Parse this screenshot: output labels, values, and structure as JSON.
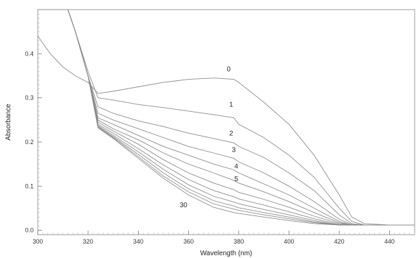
{
  "chart_data": {
    "type": "line",
    "title": "",
    "xlabel": "Wavelength (nm)",
    "ylabel": "Absorbance",
    "xlim": [
      300,
      450
    ],
    "ylim": [
      -0.01,
      0.5
    ],
    "x_ticks": [
      300,
      320,
      340,
      360,
      380,
      400,
      420,
      440
    ],
    "y_ticks": [
      0.0,
      0.1,
      0.2,
      0.3,
      0.4
    ],
    "y_tick_labels": [
      "0.0",
      "0.1",
      "0.2",
      "0.3",
      "0.4"
    ],
    "grid": false,
    "line_color": "#8a8a8a",
    "series": [
      {
        "name": "0",
        "label_at": [
          376,
          0.36
        ],
        "points": [
          [
            300,
            0.44
          ],
          [
            305,
            0.4
          ],
          [
            310,
            0.37
          ],
          [
            315,
            0.35
          ],
          [
            320,
            0.335
          ],
          [
            324,
            0.31
          ],
          [
            330,
            0.315
          ],
          [
            340,
            0.325
          ],
          [
            350,
            0.335
          ],
          [
            360,
            0.342
          ],
          [
            370,
            0.345
          ],
          [
            378,
            0.342
          ],
          [
            380,
            0.335
          ],
          [
            390,
            0.29
          ],
          [
            400,
            0.24
          ],
          [
            410,
            0.17
          ],
          [
            420,
            0.08
          ],
          [
            425,
            0.03
          ],
          [
            430,
            0.015
          ],
          [
            440,
            0.012
          ],
          [
            450,
            0.012
          ]
        ]
      },
      {
        "name": "1",
        "label_at": [
          377,
          0.28
        ],
        "points": [
          [
            300,
            0.5
          ],
          [
            312,
            0.5
          ],
          [
            315,
            0.45
          ],
          [
            320,
            0.36
          ],
          [
            324,
            0.3
          ],
          [
            330,
            0.295
          ],
          [
            340,
            0.285
          ],
          [
            350,
            0.278
          ],
          [
            360,
            0.27
          ],
          [
            370,
            0.262
          ],
          [
            378,
            0.255
          ],
          [
            380,
            0.24
          ],
          [
            390,
            0.21
          ],
          [
            400,
            0.17
          ],
          [
            410,
            0.12
          ],
          [
            420,
            0.05
          ],
          [
            425,
            0.02
          ],
          [
            430,
            0.012
          ],
          [
            440,
            0.012
          ],
          [
            450,
            0.012
          ]
        ]
      },
      {
        "name": "2",
        "label_at": [
          377,
          0.215
        ],
        "points": [
          [
            300,
            0.5
          ],
          [
            312,
            0.5
          ],
          [
            315,
            0.45
          ],
          [
            320,
            0.35
          ],
          [
            324,
            0.28
          ],
          [
            330,
            0.265
          ],
          [
            340,
            0.248
          ],
          [
            350,
            0.235
          ],
          [
            360,
            0.22
          ],
          [
            370,
            0.208
          ],
          [
            378,
            0.198
          ],
          [
            380,
            0.19
          ],
          [
            390,
            0.165
          ],
          [
            400,
            0.13
          ],
          [
            410,
            0.09
          ],
          [
            420,
            0.035
          ],
          [
            425,
            0.015
          ],
          [
            430,
            0.012
          ],
          [
            440,
            0.012
          ],
          [
            450,
            0.012
          ]
        ]
      },
      {
        "name": "3",
        "label_at": [
          378,
          0.177
        ],
        "points": [
          [
            300,
            0.5
          ],
          [
            312,
            0.5
          ],
          [
            315,
            0.45
          ],
          [
            320,
            0.35
          ],
          [
            324,
            0.265
          ],
          [
            330,
            0.25
          ],
          [
            340,
            0.23
          ],
          [
            350,
            0.21
          ],
          [
            360,
            0.19
          ],
          [
            370,
            0.175
          ],
          [
            378,
            0.163
          ],
          [
            380,
            0.155
          ],
          [
            390,
            0.13
          ],
          [
            400,
            0.1
          ],
          [
            410,
            0.065
          ],
          [
            420,
            0.025
          ],
          [
            425,
            0.013
          ],
          [
            430,
            0.012
          ],
          [
            440,
            0.012
          ],
          [
            450,
            0.012
          ]
        ]
      },
      {
        "name": "4",
        "label_at": [
          379,
          0.14
        ],
        "points": [
          [
            300,
            0.5
          ],
          [
            312,
            0.5
          ],
          [
            315,
            0.45
          ],
          [
            320,
            0.35
          ],
          [
            324,
            0.255
          ],
          [
            330,
            0.24
          ],
          [
            340,
            0.215
          ],
          [
            350,
            0.19
          ],
          [
            360,
            0.17
          ],
          [
            370,
            0.15
          ],
          [
            378,
            0.137
          ],
          [
            380,
            0.13
          ],
          [
            390,
            0.105
          ],
          [
            400,
            0.08
          ],
          [
            410,
            0.05
          ],
          [
            420,
            0.02
          ],
          [
            425,
            0.012
          ],
          [
            430,
            0.012
          ],
          [
            440,
            0.012
          ],
          [
            450,
            0.012
          ]
        ]
      },
      {
        "name": "5",
        "label_at": [
          379,
          0.111
        ],
        "points": [
          [
            300,
            0.5
          ],
          [
            312,
            0.5
          ],
          [
            315,
            0.45
          ],
          [
            320,
            0.35
          ],
          [
            324,
            0.25
          ],
          [
            330,
            0.23
          ],
          [
            340,
            0.205
          ],
          [
            350,
            0.175
          ],
          [
            360,
            0.15
          ],
          [
            370,
            0.13
          ],
          [
            378,
            0.113
          ],
          [
            380,
            0.107
          ],
          [
            390,
            0.087
          ],
          [
            400,
            0.065
          ],
          [
            410,
            0.04
          ],
          [
            420,
            0.017
          ],
          [
            425,
            0.012
          ],
          [
            430,
            0.012
          ],
          [
            440,
            0.012
          ],
          [
            450,
            0.012
          ]
        ]
      },
      {
        "name": "",
        "points": [
          [
            300,
            0.5
          ],
          [
            312,
            0.5
          ],
          [
            315,
            0.45
          ],
          [
            320,
            0.35
          ],
          [
            324,
            0.245
          ],
          [
            330,
            0.225
          ],
          [
            340,
            0.195
          ],
          [
            350,
            0.16
          ],
          [
            360,
            0.13
          ],
          [
            370,
            0.107
          ],
          [
            378,
            0.092
          ],
          [
            380,
            0.086
          ],
          [
            390,
            0.07
          ],
          [
            400,
            0.052
          ],
          [
            410,
            0.032
          ],
          [
            420,
            0.015
          ],
          [
            425,
            0.012
          ],
          [
            430,
            0.012
          ],
          [
            440,
            0.012
          ],
          [
            450,
            0.012
          ]
        ]
      },
      {
        "name": "",
        "points": [
          [
            300,
            0.5
          ],
          [
            312,
            0.5
          ],
          [
            315,
            0.45
          ],
          [
            320,
            0.35
          ],
          [
            324,
            0.24
          ],
          [
            330,
            0.22
          ],
          [
            340,
            0.185
          ],
          [
            350,
            0.148
          ],
          [
            360,
            0.115
          ],
          [
            370,
            0.09
          ],
          [
            378,
            0.076
          ],
          [
            380,
            0.071
          ],
          [
            390,
            0.057
          ],
          [
            400,
            0.042
          ],
          [
            410,
            0.026
          ],
          [
            420,
            0.013
          ],
          [
            425,
            0.012
          ],
          [
            430,
            0.012
          ],
          [
            440,
            0.012
          ],
          [
            450,
            0.012
          ]
        ]
      },
      {
        "name": "",
        "points": [
          [
            300,
            0.5
          ],
          [
            312,
            0.5
          ],
          [
            315,
            0.45
          ],
          [
            320,
            0.35
          ],
          [
            324,
            0.237
          ],
          [
            330,
            0.215
          ],
          [
            340,
            0.178
          ],
          [
            350,
            0.138
          ],
          [
            360,
            0.103
          ],
          [
            370,
            0.077
          ],
          [
            378,
            0.064
          ],
          [
            380,
            0.06
          ],
          [
            390,
            0.047
          ],
          [
            400,
            0.035
          ],
          [
            410,
            0.022
          ],
          [
            420,
            0.012
          ],
          [
            425,
            0.012
          ],
          [
            430,
            0.012
          ],
          [
            440,
            0.012
          ],
          [
            450,
            0.012
          ]
        ]
      },
      {
        "name": "",
        "points": [
          [
            300,
            0.5
          ],
          [
            312,
            0.5
          ],
          [
            315,
            0.45
          ],
          [
            320,
            0.35
          ],
          [
            324,
            0.235
          ],
          [
            330,
            0.212
          ],
          [
            340,
            0.172
          ],
          [
            350,
            0.13
          ],
          [
            360,
            0.094
          ],
          [
            370,
            0.067
          ],
          [
            378,
            0.055
          ],
          [
            380,
            0.051
          ],
          [
            390,
            0.04
          ],
          [
            400,
            0.03
          ],
          [
            410,
            0.019
          ],
          [
            420,
            0.012
          ],
          [
            425,
            0.012
          ],
          [
            430,
            0.012
          ],
          [
            440,
            0.012
          ],
          [
            450,
            0.012
          ]
        ]
      },
      {
        "name": "",
        "points": [
          [
            300,
            0.5
          ],
          [
            312,
            0.5
          ],
          [
            315,
            0.45
          ],
          [
            320,
            0.35
          ],
          [
            324,
            0.233
          ],
          [
            330,
            0.21
          ],
          [
            340,
            0.167
          ],
          [
            350,
            0.123
          ],
          [
            360,
            0.087
          ],
          [
            370,
            0.06
          ],
          [
            378,
            0.048
          ],
          [
            380,
            0.045
          ],
          [
            390,
            0.035
          ],
          [
            400,
            0.026
          ],
          [
            410,
            0.017
          ],
          [
            420,
            0.012
          ],
          [
            425,
            0.012
          ],
          [
            430,
            0.012
          ],
          [
            440,
            0.012
          ],
          [
            450,
            0.012
          ]
        ]
      },
      {
        "name": "30",
        "label_at": [
          358,
          0.052
        ],
        "points": [
          [
            300,
            0.5
          ],
          [
            312,
            0.5
          ],
          [
            315,
            0.45
          ],
          [
            320,
            0.35
          ],
          [
            324,
            0.232
          ],
          [
            330,
            0.208
          ],
          [
            340,
            0.163
          ],
          [
            350,
            0.118
          ],
          [
            360,
            0.08
          ],
          [
            370,
            0.052
          ],
          [
            378,
            0.04
          ],
          [
            380,
            0.038
          ],
          [
            390,
            0.03
          ],
          [
            400,
            0.022
          ],
          [
            410,
            0.015
          ],
          [
            420,
            0.012
          ],
          [
            425,
            0.012
          ],
          [
            430,
            0.012
          ],
          [
            440,
            0.012
          ],
          [
            450,
            0.012
          ]
        ]
      }
    ]
  }
}
